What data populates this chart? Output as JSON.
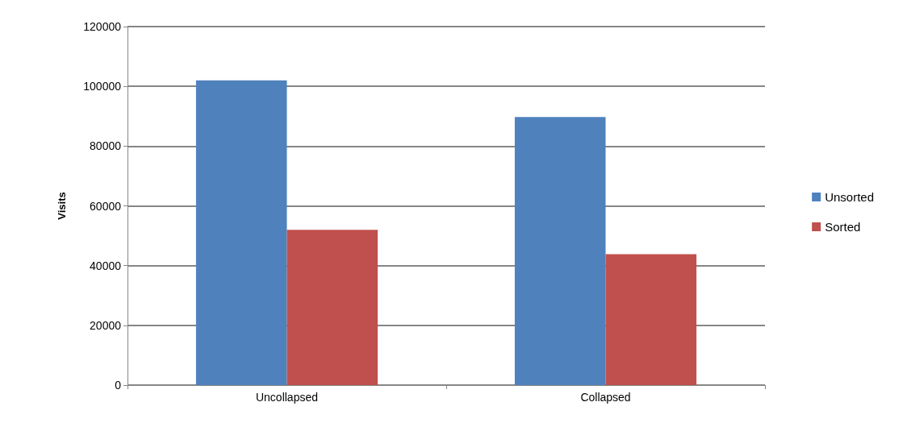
{
  "chart_data": {
    "type": "bar",
    "ylabel": "Visits",
    "categories": [
      "Uncollapsed",
      "Collapsed"
    ],
    "series": [
      {
        "name": "Unsorted",
        "color": "#4f81bd",
        "values": [
          102000,
          89700
        ]
      },
      {
        "name": "Sorted",
        "color": "#c0504d",
        "values": [
          52000,
          43800
        ]
      }
    ],
    "ylim": [
      0,
      120000
    ],
    "yticks": [
      0,
      20000,
      40000,
      60000,
      80000,
      100000,
      120000
    ],
    "grid": "y",
    "legend": "right"
  }
}
